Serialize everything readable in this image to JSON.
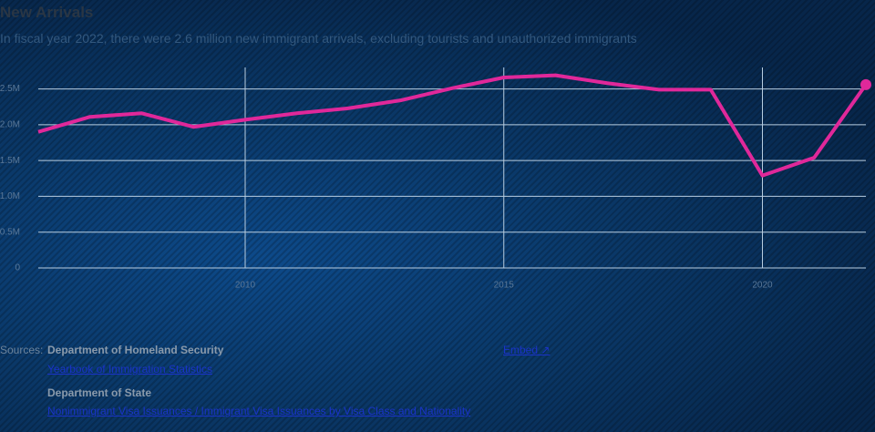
{
  "chart_data": {
    "type": "line",
    "title": "New Arrivals",
    "subtitle": "In fiscal year 2022, there were 2.6 million new immigrant arrivals, excluding tourists and unauthorized immigrants",
    "x": [
      2006,
      2007,
      2008,
      2009,
      2010,
      2011,
      2012,
      2013,
      2014,
      2015,
      2016,
      2017,
      2018,
      2019,
      2020,
      2021,
      2022
    ],
    "series": [
      {
        "name": "New arrivals",
        "color": "#e0289a",
        "values": [
          1.9,
          2.11,
          2.16,
          1.97,
          2.07,
          2.16,
          2.23,
          2.34,
          2.51,
          2.66,
          2.69,
          2.58,
          2.49,
          2.49,
          1.29,
          1.54,
          2.56
        ]
      }
    ],
    "xlim": [
      2006,
      2022
    ],
    "xticks": [
      2010,
      2015,
      2020
    ],
    "ylim": [
      0,
      2.8
    ],
    "yticks": [
      0,
      {
        "value": 0.5,
        "label": "0.5M"
      },
      {
        "value": 1,
        "label": "1.0M"
      },
      {
        "value": 1.5,
        "label": "1.5M"
      },
      {
        "value": 2,
        "label": "2.0M"
      },
      {
        "value": 2.5,
        "label": "2.5M"
      }
    ],
    "grid": true
  },
  "sources": {
    "label": "Sources:",
    "embed": "Embed ↗",
    "items": [
      {
        "name": "Department of Homeland Security",
        "link": "Yearbook of Immigration Statistics"
      },
      {
        "name": "Department of State",
        "link": "Nonimmigrant Visa Issuances / Immigrant Visa Issuances by Visa Class and Nationality"
      }
    ]
  }
}
